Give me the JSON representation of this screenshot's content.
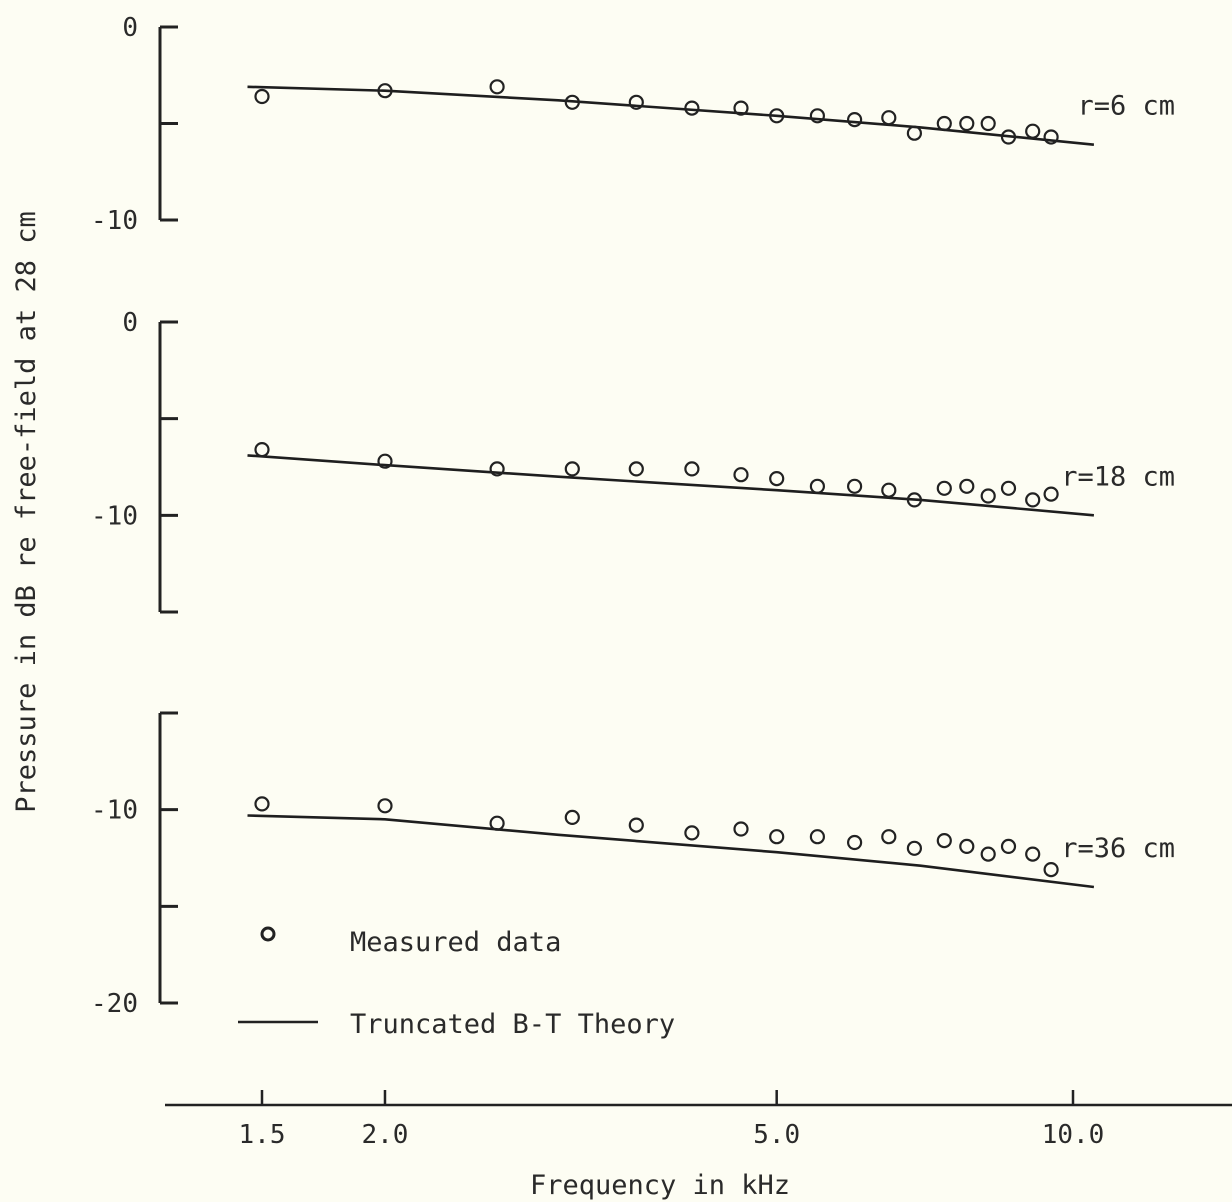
{
  "chart_data": {
    "type": "scatter",
    "xlabel": "Frequency in kHz",
    "ylabel": "Pressure in dB re free-field at 28 cm",
    "x_scale": "log",
    "x_ticks": [
      "1.5",
      "2.0",
      "5.0",
      "10.0"
    ],
    "xlim": [
      1.5,
      10.0
    ],
    "panels": [
      {
        "name": "r=6 cm",
        "y_ticks": [
          "0",
          "-10"
        ],
        "ylim": [
          -10,
          0
        ],
        "measured": [
          [
            1.5,
            -3.6
          ],
          [
            2.0,
            -3.3
          ],
          [
            2.6,
            -3.1
          ],
          [
            3.1,
            -3.9
          ],
          [
            3.6,
            -3.9
          ],
          [
            4.1,
            -4.2
          ],
          [
            4.6,
            -4.2
          ],
          [
            5.0,
            -4.6
          ],
          [
            5.5,
            -4.6
          ],
          [
            6.0,
            -4.8
          ],
          [
            6.5,
            -4.7
          ],
          [
            6.9,
            -5.5
          ],
          [
            7.4,
            -5.0
          ],
          [
            7.8,
            -5.0
          ],
          [
            8.2,
            -5.0
          ],
          [
            8.6,
            -5.7
          ],
          [
            9.1,
            -5.4
          ],
          [
            9.5,
            -5.7
          ]
        ],
        "theory": [
          [
            1.45,
            -3.1
          ],
          [
            2.0,
            -3.3
          ],
          [
            3.0,
            -3.8
          ],
          [
            5.0,
            -4.6
          ],
          [
            7.0,
            -5.2
          ],
          [
            10.5,
            -6.1
          ]
        ]
      },
      {
        "name": "r=18 cm",
        "y_ticks": [
          "0",
          "-10"
        ],
        "ylim": [
          -15,
          0
        ],
        "measured": [
          [
            1.5,
            -6.6
          ],
          [
            2.0,
            -7.2
          ],
          [
            2.6,
            -7.6
          ],
          [
            3.1,
            -7.6
          ],
          [
            3.6,
            -7.6
          ],
          [
            4.1,
            -7.6
          ],
          [
            4.6,
            -7.9
          ],
          [
            5.0,
            -8.1
          ],
          [
            5.5,
            -8.5
          ],
          [
            6.0,
            -8.5
          ],
          [
            6.5,
            -8.7
          ],
          [
            6.9,
            -9.2
          ],
          [
            7.4,
            -8.6
          ],
          [
            7.8,
            -8.5
          ],
          [
            8.2,
            -9.0
          ],
          [
            8.6,
            -8.6
          ],
          [
            9.1,
            -9.2
          ],
          [
            9.5,
            -8.9
          ]
        ],
        "theory": [
          [
            1.45,
            -6.9
          ],
          [
            2.0,
            -7.4
          ],
          [
            3.0,
            -8.0
          ],
          [
            5.0,
            -8.7
          ],
          [
            7.0,
            -9.2
          ],
          [
            10.5,
            -10.0
          ]
        ]
      },
      {
        "name": "r=36 cm",
        "y_ticks": [
          "-10",
          "-20"
        ],
        "ylim": [
          -20,
          -5
        ],
        "measured": [
          [
            1.5,
            -9.7
          ],
          [
            2.0,
            -9.8
          ],
          [
            2.6,
            -10.7
          ],
          [
            3.1,
            -10.4
          ],
          [
            3.6,
            -10.8
          ],
          [
            4.1,
            -11.2
          ],
          [
            4.6,
            -11.0
          ],
          [
            5.0,
            -11.4
          ],
          [
            5.5,
            -11.4
          ],
          [
            6.0,
            -11.7
          ],
          [
            6.5,
            -11.4
          ],
          [
            6.9,
            -12.0
          ],
          [
            7.4,
            -11.6
          ],
          [
            7.8,
            -11.9
          ],
          [
            8.2,
            -12.3
          ],
          [
            8.6,
            -11.9
          ],
          [
            9.1,
            -12.3
          ],
          [
            9.5,
            -13.1
          ]
        ],
        "theory": [
          [
            1.45,
            -10.3
          ],
          [
            2.0,
            -10.5
          ],
          [
            3.0,
            -11.3
          ],
          [
            5.0,
            -12.2
          ],
          [
            7.0,
            -12.9
          ],
          [
            10.5,
            -14.0
          ]
        ]
      }
    ],
    "legend": {
      "position": "lower-left",
      "entries": [
        {
          "label": "Measured data",
          "marker": "circle"
        },
        {
          "label": "Truncated B-T Theory",
          "marker": "line"
        }
      ]
    }
  }
}
